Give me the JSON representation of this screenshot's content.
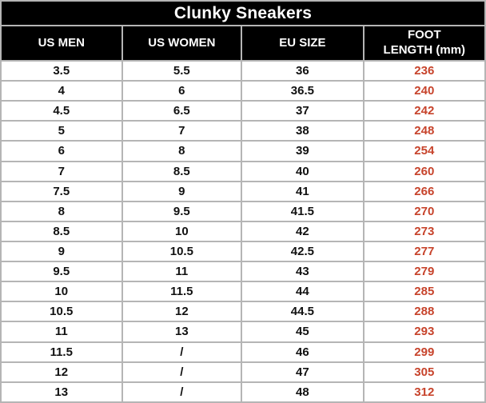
{
  "colors": {
    "header_bg": "#000000",
    "header_text": "#ffffff",
    "body_text": "#111111",
    "foot_length_text": "#c7432b",
    "grid_line": "#b5b5b5",
    "row_bg": "#ffffff"
  },
  "chart_data": {
    "type": "table",
    "title": "Clunky Sneakers",
    "columns": [
      "US MEN",
      "US WOMEN",
      "EU SIZE",
      "FOOT LENGTH (mm)"
    ],
    "column_header_display": [
      "US MEN",
      "US WOMEN",
      "EU SIZE",
      "FOOT\nLENGTH (mm)"
    ],
    "foot_length_column_index": 3,
    "rows": [
      [
        "3.5",
        "5.5",
        "36",
        "236"
      ],
      [
        "4",
        "6",
        "36.5",
        "240"
      ],
      [
        "4.5",
        "6.5",
        "37",
        "242"
      ],
      [
        "5",
        "7",
        "38",
        "248"
      ],
      [
        "6",
        "8",
        "39",
        "254"
      ],
      [
        "7",
        "8.5",
        "40",
        "260"
      ],
      [
        "7.5",
        "9",
        "41",
        "266"
      ],
      [
        "8",
        "9.5",
        "41.5",
        "270"
      ],
      [
        "8.5",
        "10",
        "42",
        "273"
      ],
      [
        "9",
        "10.5",
        "42.5",
        "277"
      ],
      [
        "9.5",
        "11",
        "43",
        "279"
      ],
      [
        "10",
        "11.5",
        "44",
        "285"
      ],
      [
        "10.5",
        "12",
        "44.5",
        "288"
      ],
      [
        "11",
        "13",
        "45",
        "293"
      ],
      [
        "11.5",
        "/",
        "46",
        "299"
      ],
      [
        "12",
        "/",
        "47",
        "305"
      ],
      [
        "13",
        "/",
        "48",
        "312"
      ]
    ]
  }
}
